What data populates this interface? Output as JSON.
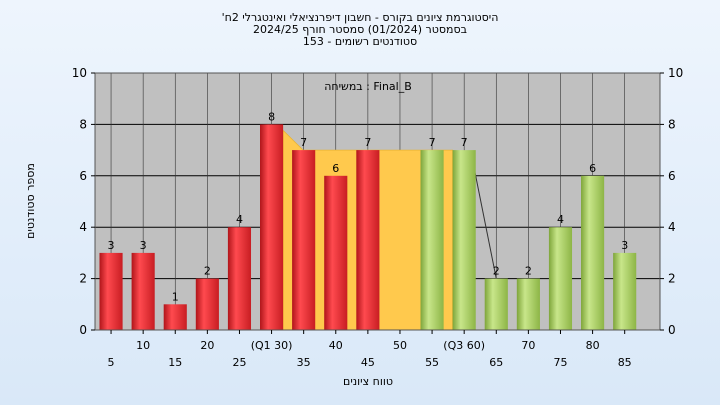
{
  "chart_data": {
    "type": "bar",
    "title_lines": [
      "'היסטוגרמת ציונים בקורס - חשבון דיפרנציאלי ואינטגרלי 2ח",
      "בסמסטר  (01/2024)  סמסטר חורף 2024/25",
      "סטודנטים רשומים - 153"
    ],
    "inner_label": "במשיחה : Final_B",
    "xlabel": "טווח ציונים",
    "ylabel": "מספר סטודנטים",
    "ylim": [
      0,
      10
    ],
    "y_ticks": [
      0,
      2,
      4,
      6,
      8,
      10
    ],
    "grid": true,
    "x_tick_labels": [
      {
        "x": 5,
        "label": "5"
      },
      {
        "x": 10,
        "label": "10"
      },
      {
        "x": 15,
        "label": "15"
      },
      {
        "x": 20,
        "label": "20"
      },
      {
        "x": 25,
        "label": "25"
      },
      {
        "x": 30,
        "label": "(Q1 30)"
      },
      {
        "x": 35,
        "label": "35"
      },
      {
        "x": 40,
        "label": "40"
      },
      {
        "x": 45,
        "label": "45"
      },
      {
        "x": 50,
        "label": "50"
      },
      {
        "x": 55,
        "label": "55"
      },
      {
        "x": 60,
        "label": "(Q3 60)"
      },
      {
        "x": 65,
        "label": "65"
      },
      {
        "x": 70,
        "label": "70"
      },
      {
        "x": 75,
        "label": "75"
      },
      {
        "x": 80,
        "label": "80"
      },
      {
        "x": 85,
        "label": "85"
      }
    ],
    "bars": [
      {
        "x": 5,
        "value": 3,
        "group": "red"
      },
      {
        "x": 10,
        "value": 3,
        "group": "red"
      },
      {
        "x": 15,
        "value": 1,
        "group": "red"
      },
      {
        "x": 20,
        "value": 2,
        "group": "red"
      },
      {
        "x": 25,
        "value": 4,
        "group": "red"
      },
      {
        "x": 30,
        "value": 8,
        "group": "red"
      },
      {
        "x": 35,
        "value": 7,
        "group": "red"
      },
      {
        "x": 40,
        "value": 6,
        "group": "red"
      },
      {
        "x": 45,
        "value": 7,
        "group": "red"
      },
      {
        "x": 55,
        "value": 7,
        "group": "green"
      },
      {
        "x": 60,
        "value": 7,
        "group": "green"
      },
      {
        "x": 65,
        "value": 2,
        "group": "green"
      },
      {
        "x": 70,
        "value": 2,
        "group": "green"
      },
      {
        "x": 75,
        "value": 4,
        "group": "green"
      },
      {
        "x": 80,
        "value": 6,
        "group": "green"
      },
      {
        "x": 85,
        "value": 3,
        "group": "green"
      }
    ],
    "band": {
      "x_start": 30,
      "x_end": 60,
      "level": 7
    },
    "colors": {
      "plot_bg": "#c0c0c0",
      "grid": "#000000",
      "red": "#e8262c",
      "green": "#a6cc57",
      "band": "#ffc94d"
    }
  }
}
